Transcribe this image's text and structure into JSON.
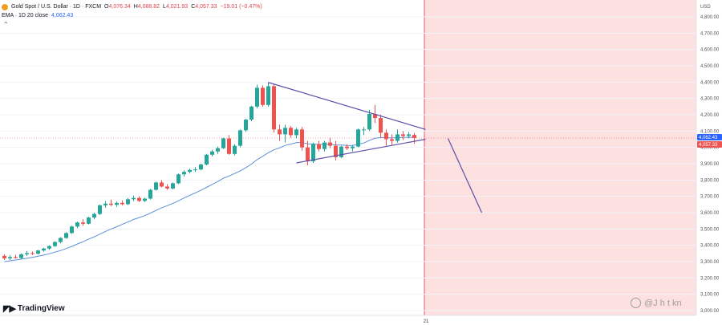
{
  "legend": {
    "symbol": "Gold Spot / U.S. Dollar · 1D · FXCM",
    "o_label": "O",
    "o": "4,076.34",
    "h_label": "H",
    "h": "4,088.82",
    "l_label": "L",
    "l": "4,021.93",
    "c_label": "C",
    "c": "4,057.33",
    "change": "−19.01 (−0.47%)",
    "ema_label": "EMA · 1D 20 close",
    "ema_value": "4,062.43"
  },
  "axis": {
    "currency": "USD",
    "x_tick": "21"
  },
  "branding": {
    "logo": "TradingView",
    "watermark": "@J h t kn"
  },
  "colors": {
    "up": "#26a69a",
    "down": "#ef5350",
    "ema": "#5b8fd9",
    "pattern": "#5b4fa8",
    "zone": "#fde0e0",
    "zone_border": "#e05a6a",
    "ema_tag": "#2962ff"
  },
  "chart_data": {
    "type": "candlestick",
    "ylim": [
      3000,
      4850
    ],
    "yticks": [
      3000,
      3100,
      3200,
      3300,
      3400,
      3500,
      3600,
      3700,
      3800,
      3900,
      4000,
      4100,
      4200,
      4300,
      4400,
      4500,
      4600,
      4700,
      4800
    ],
    "ytick_labels": [
      "3,000.00",
      "3,100.00",
      "3,200.00",
      "3,300.00",
      "3,400.00",
      "3,500.00",
      "3,600.00",
      "3,700.00",
      "3,800.00",
      "3,900.00",
      "4,000.00",
      "4,100.00",
      "4,200.00",
      "4,300.00",
      "4,400.00",
      "4,500.00",
      "4,600.00",
      "4,700.00",
      "4,800.00"
    ],
    "price_tags": [
      {
        "name": "EMA 20",
        "value": 4062.43,
        "label": "4,062.43",
        "color": "#2962ff"
      },
      {
        "name": "Close",
        "value": 4057.33,
        "label": "4,057.33",
        "color": "#ef5350"
      }
    ],
    "candles": [
      [
        3335,
        3345,
        3310,
        3320
      ],
      [
        3320,
        3340,
        3310,
        3328
      ],
      [
        3328,
        3342,
        3318,
        3322
      ],
      [
        3322,
        3350,
        3315,
        3345
      ],
      [
        3345,
        3365,
        3335,
        3352
      ],
      [
        3352,
        3362,
        3340,
        3348
      ],
      [
        3348,
        3372,
        3344,
        3368
      ],
      [
        3368,
        3385,
        3360,
        3380
      ],
      [
        3380,
        3400,
        3372,
        3395
      ],
      [
        3395,
        3425,
        3390,
        3420
      ],
      [
        3420,
        3450,
        3412,
        3445
      ],
      [
        3445,
        3480,
        3440,
        3475
      ],
      [
        3475,
        3520,
        3470,
        3515
      ],
      [
        3515,
        3545,
        3505,
        3540
      ],
      [
        3540,
        3560,
        3520,
        3532
      ],
      [
        3532,
        3575,
        3528,
        3570
      ],
      [
        3570,
        3600,
        3560,
        3592
      ],
      [
        3592,
        3650,
        3585,
        3645
      ],
      [
        3645,
        3670,
        3630,
        3655
      ],
      [
        3655,
        3680,
        3640,
        3648
      ],
      [
        3648,
        3668,
        3635,
        3660
      ],
      [
        3660,
        3675,
        3645,
        3652
      ],
      [
        3652,
        3690,
        3646,
        3682
      ],
      [
        3682,
        3705,
        3670,
        3690
      ],
      [
        3690,
        3700,
        3665,
        3672
      ],
      [
        3672,
        3692,
        3665,
        3686
      ],
      [
        3686,
        3745,
        3680,
        3740
      ],
      [
        3740,
        3790,
        3735,
        3785
      ],
      [
        3785,
        3800,
        3755,
        3760
      ],
      [
        3760,
        3775,
        3740,
        3748
      ],
      [
        3748,
        3785,
        3742,
        3780
      ],
      [
        3780,
        3840,
        3775,
        3835
      ],
      [
        3835,
        3860,
        3820,
        3850
      ],
      [
        3850,
        3870,
        3840,
        3862
      ],
      [
        3862,
        3880,
        3850,
        3865
      ],
      [
        3865,
        3900,
        3860,
        3895
      ],
      [
        3895,
        3960,
        3890,
        3955
      ],
      [
        3955,
        3985,
        3945,
        3975
      ],
      [
        3975,
        4005,
        3960,
        3995
      ],
      [
        3995,
        4060,
        3990,
        4055
      ],
      [
        4055,
        4075,
        3955,
        3960
      ],
      [
        3960,
        4020,
        3950,
        4010
      ],
      [
        4010,
        4110,
        4000,
        4105
      ],
      [
        4105,
        4175,
        4095,
        4170
      ],
      [
        4170,
        4255,
        4160,
        4250
      ],
      [
        4250,
        4385,
        4240,
        4365
      ],
      [
        4365,
        4380,
        4250,
        4260
      ],
      [
        4260,
        4398,
        4250,
        4375
      ],
      [
        4375,
        4385,
        4090,
        4110
      ],
      [
        4110,
        4140,
        4040,
        4080
      ],
      [
        4080,
        4140,
        4030,
        4120
      ],
      [
        4120,
        4130,
        4060,
        4075
      ],
      [
        4075,
        4120,
        4055,
        4110
      ],
      [
        4110,
        4125,
        3980,
        4000
      ],
      [
        4000,
        4040,
        3890,
        3915
      ],
      [
        3915,
        4030,
        3905,
        4020
      ],
      [
        4020,
        4040,
        3975,
        3990
      ],
      [
        3990,
        4040,
        3975,
        4030
      ],
      [
        4030,
        4060,
        3995,
        4010
      ],
      [
        4010,
        4040,
        3920,
        3940
      ],
      [
        3940,
        4010,
        3935,
        4005
      ],
      [
        4005,
        4020,
        3985,
        3995
      ],
      [
        3995,
        4015,
        3975,
        4005
      ],
      [
        4005,
        4115,
        4000,
        4110
      ],
      [
        4110,
        4125,
        4075,
        4110
      ],
      [
        4110,
        4230,
        4100,
        4205
      ],
      [
        4205,
        4260,
        4150,
        4180
      ],
      [
        4180,
        4200,
        4060,
        4090
      ],
      [
        4090,
        4110,
        4010,
        4050
      ],
      [
        4050,
        4080,
        4015,
        4040
      ],
      [
        4040,
        4110,
        4030,
        4080
      ],
      [
        4080,
        4100,
        4045,
        4070
      ],
      [
        4070,
        4095,
        4055,
        4080
      ],
      [
        4076.34,
        4088.82,
        4021.93,
        4057.33
      ]
    ],
    "ema20": [
      3300,
      3305,
      3310,
      3315,
      3320,
      3326,
      3333,
      3340,
      3348,
      3358,
      3368,
      3380,
      3393,
      3408,
      3422,
      3437,
      3452,
      3468,
      3485,
      3500,
      3514,
      3528,
      3543,
      3558,
      3570,
      3582,
      3597,
      3614,
      3630,
      3643,
      3657,
      3673,
      3690,
      3706,
      3721,
      3737,
      3755,
      3773,
      3791,
      3811,
      3825,
      3840,
      3856,
      3876,
      3898,
      3925,
      3945,
      3968,
      3985,
      3997,
      4012,
      4020,
      4030,
      4030,
      4022,
      4021,
      4018,
      4019,
      4018,
      4015,
      4014,
      4012,
      4011,
      4020,
      4027,
      4043,
      4056,
      4060,
      4060,
      4058,
      4060,
      4061,
      4062,
      4062.43
    ]
  },
  "drawings": {
    "pattern": "symmetrical triangle",
    "upper_trendline": [
      [
        47,
        4398
      ],
      [
        75,
        4110
      ]
    ],
    "lower_trendline": [
      [
        52,
        3905
      ],
      [
        75,
        4050
      ]
    ],
    "projection": [
      [
        79,
        4055
      ],
      [
        85,
        3600
      ]
    ],
    "highlight_zone_from_bar": 72
  }
}
